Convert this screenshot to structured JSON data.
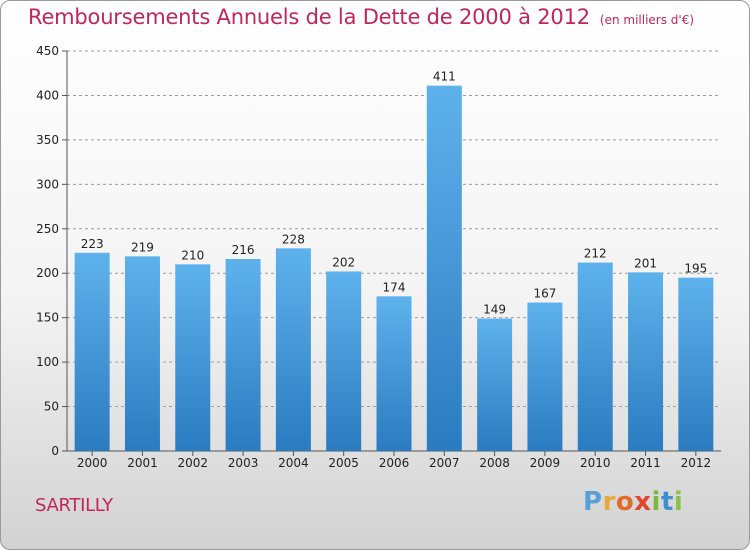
{
  "header": {
    "title": "Remboursements Annuels de la Dette de 2000 à 2012",
    "subtitle": "(en milliers d'€)"
  },
  "footer": {
    "place": "SARTILLY",
    "logo": "Proxiti"
  },
  "colors": {
    "title": "#c2255a",
    "bar_top": "#5eb2ec",
    "bar_bottom": "#2b7bc0",
    "grid": "#9d9d9d",
    "axis_text": "#222222"
  },
  "chart_data": {
    "type": "bar",
    "title": "Remboursements Annuels de la Dette de 2000 à 2012",
    "subtitle": "(en milliers d'€)",
    "categories": [
      "2000",
      "2001",
      "2002",
      "2003",
      "2004",
      "2005",
      "2006",
      "2007",
      "2008",
      "2009",
      "2010",
      "2011",
      "2012"
    ],
    "values": [
      223,
      219,
      210,
      216,
      228,
      202,
      174,
      411,
      149,
      167,
      212,
      201,
      195
    ],
    "ylim": [
      0,
      450
    ],
    "yticks": [
      0,
      50,
      100,
      150,
      200,
      250,
      300,
      350,
      400,
      450
    ],
    "grid": true,
    "data_labels": true
  }
}
